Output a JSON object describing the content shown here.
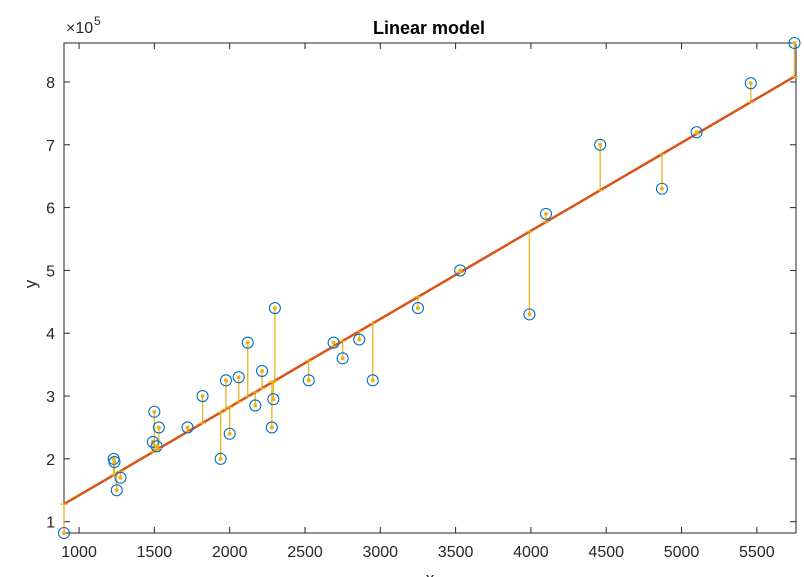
{
  "chart_data": {
    "type": "scatter",
    "title": "Linear model",
    "xlabel": "x",
    "ylabel": "y",
    "y_exponent_base": "×10",
    "y_exponent_power": "5",
    "xlim": [
      900,
      5760
    ],
    "ylim": [
      0.82,
      8.62
    ],
    "xticks": [
      1000,
      1500,
      2000,
      2500,
      3000,
      3500,
      4000,
      4500,
      5000,
      5500
    ],
    "yticks": [
      1,
      2,
      3,
      4,
      5,
      6,
      7,
      8
    ],
    "grid": false,
    "legend": "none",
    "fit": {
      "x": [
        900,
        5760
      ],
      "y": [
        1.28,
        8.1
      ]
    },
    "points": {
      "x": [
        900,
        1230,
        1235,
        1250,
        1275,
        1490,
        1500,
        1515,
        1530,
        1720,
        1820,
        1940,
        1975,
        2000,
        2060,
        2120,
        2170,
        2215,
        2280,
        2290,
        2300,
        2525,
        2690,
        2750,
        2860,
        2950,
        3250,
        3530,
        3990,
        4100,
        4460,
        4870,
        5100,
        5460,
        5750
      ],
      "y": [
        0.82,
        2.0,
        1.95,
        1.5,
        1.7,
        2.27,
        2.75,
        2.2,
        2.5,
        2.5,
        3.0,
        2.0,
        3.25,
        2.4,
        3.3,
        3.85,
        2.85,
        3.4,
        2.5,
        2.95,
        4.4,
        3.25,
        3.85,
        3.6,
        3.9,
        3.25,
        4.4,
        5.0,
        4.3,
        5.9,
        7.0,
        6.3,
        7.2,
        7.98,
        8.62
      ]
    },
    "colors": {
      "axis": "#262626",
      "marker": "#0072bd",
      "fit": "#d95319",
      "residual": "#edb120"
    }
  }
}
